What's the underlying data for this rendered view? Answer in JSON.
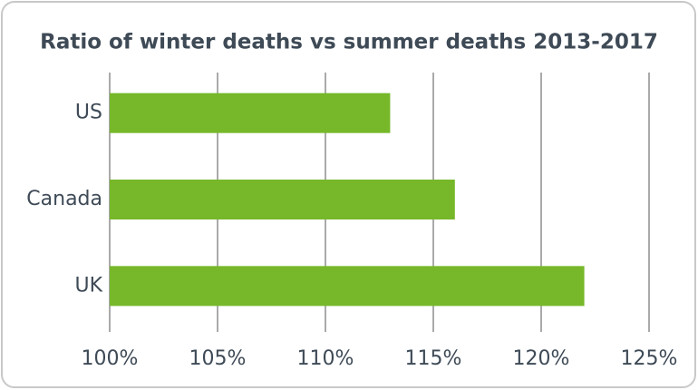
{
  "chart_data": {
    "type": "bar",
    "orientation": "horizontal",
    "title": "Ratio of winter deaths vs summer deaths 2013-2017",
    "categories": [
      "US",
      "Canada",
      "UK"
    ],
    "values": [
      113,
      116,
      122
    ],
    "color": "#76b82a",
    "xlim": [
      100,
      125
    ],
    "xticks": [
      {
        "value": 100,
        "label": "100%"
      },
      {
        "value": 105,
        "label": "105%"
      },
      {
        "value": 110,
        "label": "110%"
      },
      {
        "value": 115,
        "label": "115%"
      },
      {
        "value": 120,
        "label": "120%"
      },
      {
        "value": 125,
        "label": "125%"
      }
    ],
    "grid": true
  }
}
